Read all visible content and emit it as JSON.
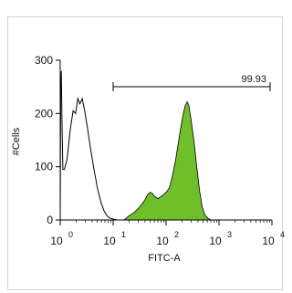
{
  "chart_data": {
    "type": "histogram",
    "xlabel": "FITC-A",
    "ylabel": "#Cells",
    "x_scale": "log",
    "xlim": [
      1,
      10000
    ],
    "ylim": [
      0,
      300
    ],
    "x_ticks": [
      {
        "base": "10",
        "exp": "0",
        "value": 1
      },
      {
        "base": "10",
        "exp": "1",
        "value": 10
      },
      {
        "base": "10",
        "exp": "2",
        "value": 100
      },
      {
        "base": "10",
        "exp": "3",
        "value": 1000
      },
      {
        "base": "10",
        "exp": "4",
        "value": 10000
      }
    ],
    "y_ticks": [
      "0",
      "100",
      "200",
      "300"
    ],
    "gate": {
      "label": "99.93",
      "x_range": [
        10,
        10000
      ]
    },
    "series": [
      {
        "style": "outline",
        "color": "#000000",
        "points": [
          [
            1.0,
            0
          ],
          [
            1.02,
            240
          ],
          [
            1.05,
            280
          ],
          [
            1.08,
            190
          ],
          [
            1.12,
            95
          ],
          [
            1.2,
            95
          ],
          [
            1.35,
            115
          ],
          [
            1.55,
            170
          ],
          [
            1.75,
            205
          ],
          [
            1.95,
            200
          ],
          [
            2.15,
            228
          ],
          [
            2.35,
            218
          ],
          [
            2.6,
            228
          ],
          [
            2.9,
            205
          ],
          [
            3.3,
            170
          ],
          [
            3.8,
            130
          ],
          [
            4.4,
            92
          ],
          [
            5.1,
            58
          ],
          [
            5.9,
            33
          ],
          [
            6.8,
            16
          ],
          [
            7.8,
            7
          ],
          [
            9,
            3
          ],
          [
            10.5,
            1
          ],
          [
            12,
            0
          ]
        ]
      },
      {
        "style": "filled",
        "color": "#6fbf2a",
        "points": [
          [
            16,
            0
          ],
          [
            20,
            8
          ],
          [
            25,
            14
          ],
          [
            30,
            22
          ],
          [
            35,
            30
          ],
          [
            40,
            38
          ],
          [
            45,
            48
          ],
          [
            50,
            52
          ],
          [
            55,
            50
          ],
          [
            60,
            45
          ],
          [
            70,
            40
          ],
          [
            85,
            46
          ],
          [
            100,
            52
          ],
          [
            115,
            60
          ],
          [
            130,
            80
          ],
          [
            150,
            110
          ],
          [
            170,
            145
          ],
          [
            190,
            175
          ],
          [
            210,
            198
          ],
          [
            230,
            215
          ],
          [
            250,
            222
          ],
          [
            270,
            215
          ],
          [
            300,
            185
          ],
          [
            340,
            145
          ],
          [
            380,
            100
          ],
          [
            430,
            55
          ],
          [
            480,
            25
          ],
          [
            540,
            10
          ],
          [
            620,
            3
          ],
          [
            700,
            0
          ]
        ]
      }
    ]
  }
}
